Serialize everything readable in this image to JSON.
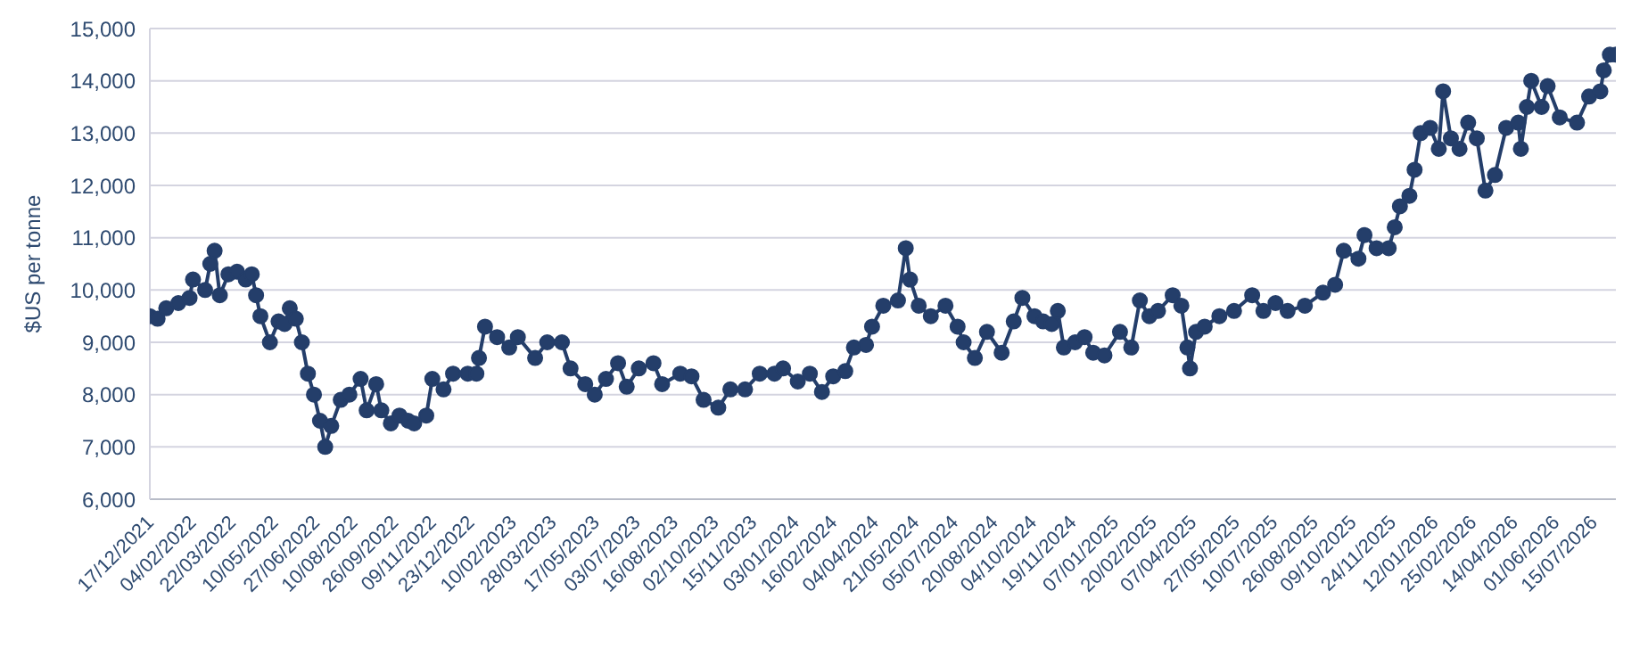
{
  "chart_data": {
    "type": "line",
    "ylabel": "$US per tonne",
    "x": [
      "2021-12-17",
      "2021-12-26",
      "2022-01-05",
      "2022-01-19",
      "2022-02-01",
      "2022-02-05",
      "2022-02-19",
      "2022-02-25",
      "2022-03-02",
      "2022-03-08",
      "2022-03-18",
      "2022-03-28",
      "2022-04-07",
      "2022-04-14",
      "2022-04-19",
      "2022-04-24",
      "2022-05-05",
      "2022-05-15",
      "2022-05-22",
      "2022-05-28",
      "2022-06-04",
      "2022-06-11",
      "2022-06-18",
      "2022-06-25",
      "2022-07-02",
      "2022-07-08",
      "2022-07-15",
      "2022-07-26",
      "2022-08-05",
      "2022-08-18",
      "2022-08-25",
      "2022-09-05",
      "2022-09-11",
      "2022-09-22",
      "2022-10-02",
      "2022-10-12",
      "2022-10-19",
      "2022-11-02",
      "2022-11-09",
      "2022-11-22",
      "2022-12-03",
      "2022-12-20",
      "2022-12-30",
      "2023-01-02",
      "2023-01-09",
      "2023-01-23",
      "2023-02-06",
      "2023-02-16",
      "2023-03-08",
      "2023-03-22",
      "2023-04-08",
      "2023-04-18",
      "2023-05-05",
      "2023-05-16",
      "2023-05-29",
      "2023-06-12",
      "2023-06-22",
      "2023-07-06",
      "2023-07-23",
      "2023-08-02",
      "2023-08-23",
      "2023-09-05",
      "2023-09-19",
      "2023-10-06",
      "2023-10-20",
      "2023-11-06",
      "2023-11-23",
      "2023-12-10",
      "2023-12-20",
      "2024-01-06",
      "2024-01-20",
      "2024-02-03",
      "2024-02-16",
      "2024-03-01",
      "2024-03-11",
      "2024-03-25",
      "2024-04-01",
      "2024-04-14",
      "2024-05-01",
      "2024-05-10",
      "2024-05-15",
      "2024-05-25",
      "2024-06-08",
      "2024-06-25",
      "2024-07-09",
      "2024-07-16",
      "2024-07-29",
      "2024-08-12",
      "2024-08-29",
      "2024-09-12",
      "2024-09-22",
      "2024-10-06",
      "2024-10-16",
      "2024-10-26",
      "2024-11-02",
      "2024-11-09",
      "2024-11-22",
      "2024-12-03",
      "2024-12-13",
      "2024-12-26",
      "2025-01-13",
      "2025-01-26",
      "2025-02-05",
      "2025-02-16",
      "2025-02-26",
      "2025-03-15",
      "2025-03-25",
      "2025-04-01",
      "2025-04-04",
      "2025-04-11",
      "2025-04-21",
      "2025-05-08",
      "2025-05-25",
      "2025-06-15",
      "2025-06-28",
      "2025-07-12",
      "2025-07-26",
      "2025-08-15",
      "2025-09-05",
      "2025-09-19",
      "2025-09-29",
      "2025-10-16",
      "2025-10-23",
      "2025-11-06",
      "2025-11-20",
      "2025-11-27",
      "2025-12-03",
      "2025-12-14",
      "2025-12-20",
      "2025-12-27",
      "2026-01-07",
      "2026-01-17",
      "2026-01-22",
      "2026-01-31",
      "2026-02-10",
      "2026-02-20",
      "2026-03-02",
      "2026-03-12",
      "2026-03-23",
      "2026-04-05",
      "2026-04-19",
      "2026-04-22",
      "2026-04-29",
      "2026-05-04",
      "2026-05-16",
      "2026-05-23",
      "2026-06-06",
      "2026-06-26",
      "2026-07-10",
      "2026-07-23",
      "2026-07-27",
      "2026-08-03",
      "2026-08-10"
    ],
    "series": [
      {
        "color": "#243e6a",
        "values": [
          9500,
          9450,
          9650,
          9750,
          9850,
          10200,
          10000,
          10500,
          10750,
          9900,
          10300,
          10350,
          10200,
          10300,
          9900,
          9500,
          9000,
          9400,
          9350,
          9650,
          9450,
          9000,
          8400,
          8000,
          7500,
          7000,
          7400,
          7900,
          8000,
          8300,
          7700,
          8200,
          7700,
          7450,
          7600,
          7500,
          7450,
          7600,
          8300,
          8100,
          8400,
          8400,
          8400,
          8700,
          9300,
          9100,
          8900,
          9100,
          8700,
          9000,
          9000,
          8500,
          8200,
          8000,
          8300,
          8600,
          8150,
          8500,
          8600,
          8200,
          8400,
          8350,
          7900,
          7750,
          8100,
          8100,
          8400,
          8400,
          8500,
          8250,
          8400,
          8050,
          8350,
          8450,
          8900,
          8950,
          9300,
          9700,
          9800,
          10800,
          10200,
          9700,
          9500,
          9700,
          9300,
          9000,
          8700,
          9200,
          8800,
          9400,
          9850,
          9500,
          9400,
          9350,
          9600,
          8900,
          9000,
          9100,
          8800,
          8750,
          9200,
          8900,
          9800,
          9500,
          9600,
          9900,
          9700,
          8900,
          8500,
          9200,
          9300,
          9500,
          9600,
          9900,
          9600,
          9750,
          9600,
          9700,
          9950,
          10100,
          10750,
          10600,
          11050,
          10800,
          10800,
          11200,
          11600,
          11800,
          12300,
          13000,
          13100,
          12700,
          13800,
          12900,
          12700,
          13200,
          12900,
          11900,
          12200,
          13100,
          13200,
          12700,
          13500,
          14000,
          13500,
          13900,
          13300,
          13200,
          13700,
          13800,
          14200,
          14500,
          14500
        ]
      }
    ],
    "xlim": [
      "2021-12-17",
      "2026-08-10"
    ],
    "xticks": [
      {
        "value": "2021-12-17",
        "label": "17/12/2021"
      },
      {
        "value": "2022-02-04",
        "label": "04/02/2022"
      },
      {
        "value": "2022-03-22",
        "label": "22/03/2022"
      },
      {
        "value": "2022-05-10",
        "label": "10/05/2022"
      },
      {
        "value": "2022-06-27",
        "label": "27/06/2022"
      },
      {
        "value": "2022-08-10",
        "label": "10/08/2022"
      },
      {
        "value": "2022-09-26",
        "label": "26/09/2022"
      },
      {
        "value": "2022-11-09",
        "label": "09/11/2022"
      },
      {
        "value": "2022-12-23",
        "label": "23/12/2022"
      },
      {
        "value": "2023-02-10",
        "label": "10/02/2023"
      },
      {
        "value": "2023-03-28",
        "label": "28/03/2023"
      },
      {
        "value": "2023-05-17",
        "label": "17/05/2023"
      },
      {
        "value": "2023-07-03",
        "label": "03/07/2023"
      },
      {
        "value": "2023-08-16",
        "label": "16/08/2023"
      },
      {
        "value": "2023-10-02",
        "label": "02/10/2023"
      },
      {
        "value": "2023-11-15",
        "label": "15/11/2023"
      },
      {
        "value": "2024-01-03",
        "label": "03/01/2024"
      },
      {
        "value": "2024-02-16",
        "label": "16/02/2024"
      },
      {
        "value": "2024-04-04",
        "label": "04/04/2024"
      },
      {
        "value": "2024-05-21",
        "label": "21/05/2024"
      },
      {
        "value": "2024-07-05",
        "label": "05/07/2024"
      },
      {
        "value": "2024-08-20",
        "label": "20/08/2024"
      },
      {
        "value": "2024-10-04",
        "label": "04/10/2024"
      },
      {
        "value": "2024-11-19",
        "label": "19/11/2024"
      },
      {
        "value": "2025-01-07",
        "label": "07/01/2025"
      },
      {
        "value": "2025-02-20",
        "label": "20/02/2025"
      },
      {
        "value": "2025-04-07",
        "label": "07/04/2025"
      },
      {
        "value": "2025-05-27",
        "label": "27/05/2025"
      },
      {
        "value": "2025-07-10",
        "label": "10/07/2025"
      },
      {
        "value": "2025-08-26",
        "label": "26/08/2025"
      },
      {
        "value": "2025-10-09",
        "label": "09/10/2025"
      },
      {
        "value": "2025-11-24",
        "label": "24/11/2025"
      },
      {
        "value": "2026-01-12",
        "label": "12/01/2026"
      },
      {
        "value": "2026-02-25",
        "label": "25/02/2026"
      },
      {
        "value": "2026-04-14",
        "label": "14/04/2026"
      },
      {
        "value": "2026-06-01",
        "label": "01/06/2026"
      },
      {
        "value": "2026-07-15",
        "label": "15/07/2026"
      }
    ],
    "ylim": [
      6000,
      15000
    ],
    "yticks": [
      {
        "value": 6000,
        "label": "6,000"
      },
      {
        "value": 7000,
        "label": "7,000"
      },
      {
        "value": 8000,
        "label": "8,000"
      },
      {
        "value": 9000,
        "label": "9,000"
      },
      {
        "value": 10000,
        "label": "10,000"
      },
      {
        "value": 11000,
        "label": "11,000"
      },
      {
        "value": 12000,
        "label": "12,000"
      },
      {
        "value": 13000,
        "label": "13,000"
      },
      {
        "value": 14000,
        "label": "14,000"
      },
      {
        "value": 15000,
        "label": "15,000"
      }
    ],
    "grid": "y",
    "marker": "circle",
    "line_style": "solid"
  }
}
